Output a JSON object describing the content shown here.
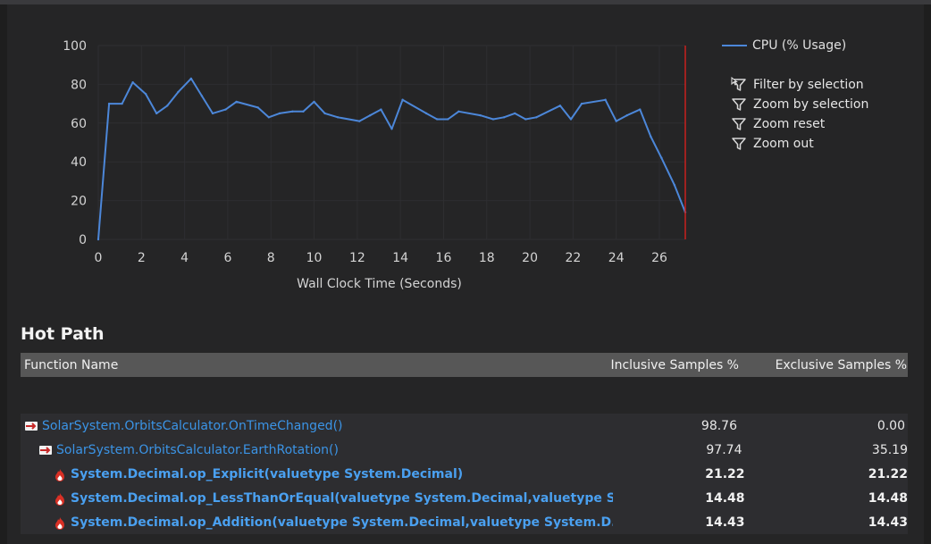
{
  "chart_data": {
    "type": "line",
    "title": "",
    "xlabel": "Wall Clock Time (Seconds)",
    "ylabel": "",
    "xlim": [
      0,
      27.2
    ],
    "ylim": [
      0,
      100
    ],
    "xticks": [
      "0",
      "2",
      "4",
      "6",
      "8",
      "10",
      "12",
      "14",
      "16",
      "18",
      "20",
      "22",
      "24",
      "26"
    ],
    "yticks": [
      "0",
      "20",
      "40",
      "60",
      "80",
      "100"
    ],
    "grid": true,
    "legend": "right",
    "series": [
      {
        "name": "CPU (% Usage)",
        "x": [
          0,
          0.5,
          1.1,
          1.6,
          2.2,
          2.7,
          3.2,
          3.7,
          4.3,
          4.8,
          5.3,
          5.9,
          6.4,
          7.4,
          7.9,
          8.4,
          9.0,
          9.5,
          10.0,
          10.5,
          11.1,
          12.1,
          12.6,
          13.1,
          13.6,
          14.1,
          15.2,
          15.7,
          16.2,
          16.7,
          17.7,
          18.3,
          18.8,
          19.3,
          19.8,
          20.3,
          21.4,
          21.9,
          22.4,
          23.5,
          24.0,
          24.5,
          25.1,
          25.6,
          26.1,
          26.7,
          27.2
        ],
        "y": [
          0,
          70,
          70,
          81,
          75,
          65,
          69,
          76,
          83,
          74,
          65,
          67,
          71,
          68,
          63,
          65,
          66,
          66,
          71,
          65,
          63,
          61,
          64,
          67,
          57,
          72,
          65,
          62,
          62,
          66,
          64,
          62,
          63,
          65,
          62,
          63,
          69,
          62,
          70,
          72,
          61,
          64,
          67,
          53,
          42,
          28,
          14
        ]
      }
    ],
    "marker_line_x": 27.2,
    "colors": {
      "series": "#4c87d9",
      "marker": "#c8201f",
      "grid": "#2e2e31",
      "text": "#d4d4d4"
    }
  },
  "legend": {
    "series_label": "CPU (% Usage)"
  },
  "actions": [
    {
      "label": "Filter by selection",
      "icon": "filter-cursor-icon"
    },
    {
      "label": "Zoom by selection",
      "icon": "funnel-icon"
    },
    {
      "label": "Zoom reset",
      "icon": "funnel-icon"
    },
    {
      "label": "Zoom out",
      "icon": "funnel-icon"
    }
  ],
  "hot_path": {
    "title": "Hot Path",
    "columns": [
      "Function Name",
      "Inclusive Samples %",
      "Exclusive Samples %"
    ],
    "rows": [
      {
        "name": "SolarSystem.OrbitsCalculator.OnTimeChanged()",
        "inclusive": "98.76",
        "exclusive": "0.00",
        "indent": 0,
        "icon": "hot-path-arrow-icon",
        "hot": false
      },
      {
        "name": "SolarSystem.OrbitsCalculator.EarthRotation()",
        "inclusive": "97.74",
        "exclusive": "35.19",
        "indent": 1,
        "icon": "hot-path-arrow-icon",
        "hot": false
      },
      {
        "name": "System.Decimal.op_Explicit(valuetype System.Decimal)",
        "inclusive": "21.22",
        "exclusive": "21.22",
        "indent": 2,
        "icon": "flame-icon",
        "hot": true
      },
      {
        "name": "System.Decimal.op_LessThanOrEqual(valuetype  System.Decimal,valuetype S...",
        "inclusive": "14.48",
        "exclusive": "14.48",
        "indent": 2,
        "icon": "flame-icon",
        "hot": true
      },
      {
        "name": "System.Decimal.op_Addition(valuetype  System.Decimal,valuetype System.D...",
        "inclusive": "14.43",
        "exclusive": "14.43",
        "indent": 2,
        "icon": "flame-icon",
        "hot": true
      }
    ]
  }
}
